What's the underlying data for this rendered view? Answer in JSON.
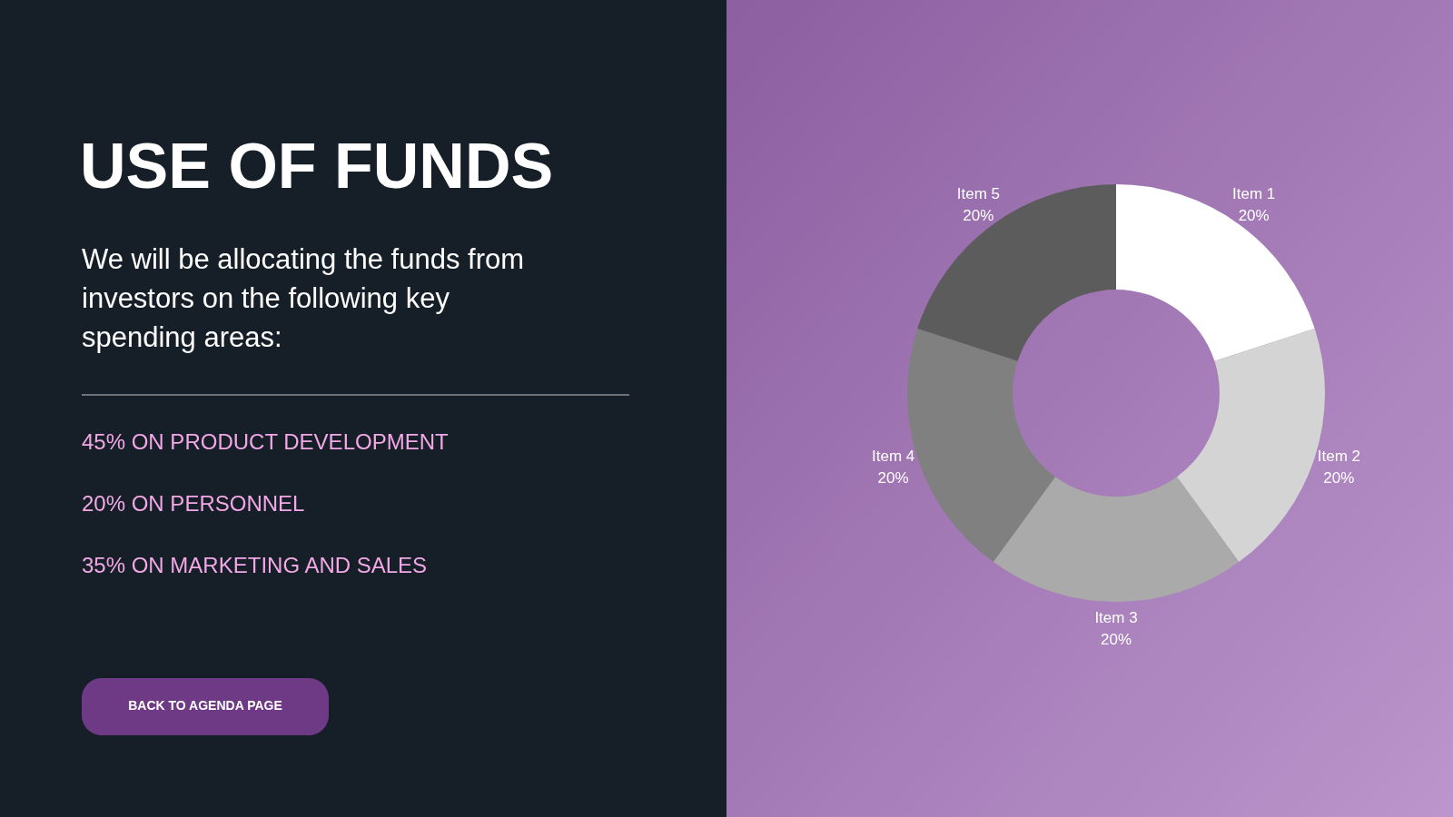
{
  "chart_data": {
    "type": "donut",
    "title": "USE OF FUNDS",
    "subtitle": "We will be allocating the funds from investors on the following key spending areas:",
    "annotations": [
      "45% ON PRODUCT DEVELOPMENT",
      "20% ON PERSONNEL",
      "35% ON MARKETING AND SALES",
      "BACK TO AGENDA PAGE"
    ],
    "categories": [
      "Item 1",
      "Item 2",
      "Item 3",
      "Item 4",
      "Item 5"
    ],
    "values": [
      20,
      20,
      20,
      20,
      20
    ],
    "colors": [
      "#ffffff",
      "#d4d4d4",
      "#aaaaaa",
      "#808080",
      "#5c5c5c"
    ],
    "value_labels": [
      "20%",
      "20%",
      "20%",
      "20%",
      "20%"
    ]
  }
}
